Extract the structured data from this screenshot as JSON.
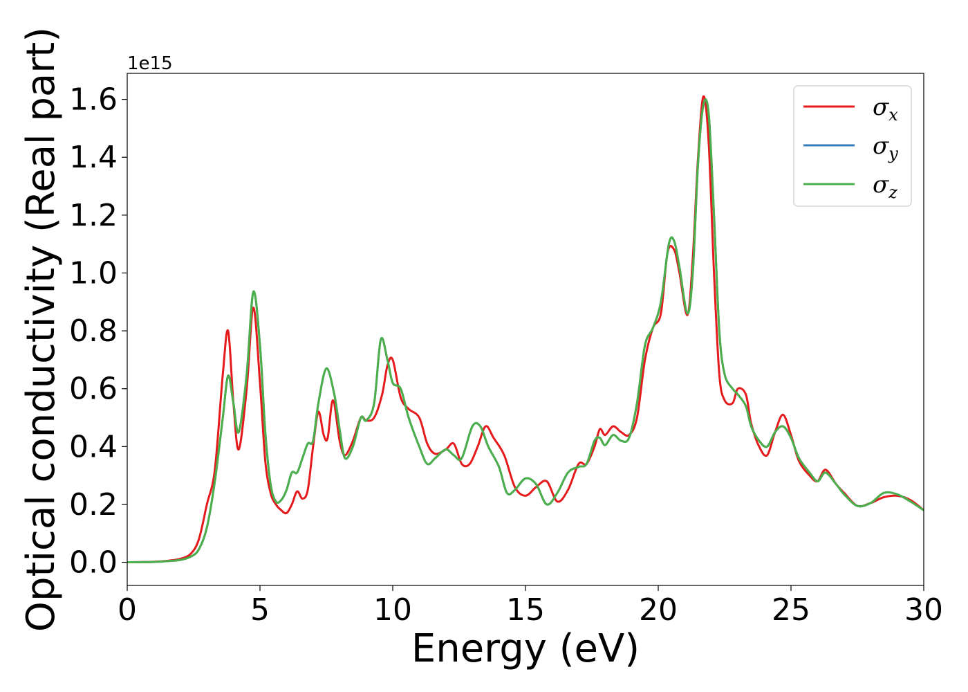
{
  "chart_data": {
    "type": "line",
    "xlabel": "Energy (eV)",
    "ylabel": "Optical conductivity (Real part)",
    "y_offset_label": "1e15",
    "xlim": [
      0,
      30
    ],
    "ylim": [
      -0.08,
      1.69
    ],
    "x_ticks": [
      0,
      5,
      10,
      15,
      20,
      25,
      30
    ],
    "y_ticks": [
      0.0,
      0.2,
      0.4,
      0.6,
      0.8,
      1.0,
      1.2,
      1.4,
      1.6
    ],
    "y_tick_labels": [
      "0.0",
      "0.2",
      "0.4",
      "0.6",
      "0.8",
      "1.0",
      "1.2",
      "1.4",
      "1.6"
    ],
    "grid": false,
    "legend_position": "top-right",
    "series": [
      {
        "name": "σ",
        "subscript": "x",
        "color": "#e41a1c",
        "x": [
          0,
          1,
          1.5,
          2,
          2.4,
          2.7,
          3.0,
          3.3,
          3.6,
          3.8,
          4.0,
          4.2,
          4.5,
          4.75,
          5.0,
          5.2,
          5.4,
          5.6,
          5.8,
          6.0,
          6.2,
          6.4,
          6.6,
          6.8,
          7.0,
          7.2,
          7.4,
          7.55,
          7.75,
          8.0,
          8.2,
          8.5,
          8.8,
          9.0,
          9.3,
          9.6,
          9.8,
          10.0,
          10.3,
          10.6,
          11.0,
          11.3,
          11.6,
          12.0,
          12.3,
          12.6,
          12.9,
          13.2,
          13.5,
          13.8,
          14.2,
          14.6,
          15.0,
          15.4,
          15.8,
          16.2,
          16.6,
          17.0,
          17.3,
          17.6,
          17.8,
          18.0,
          18.3,
          18.6,
          18.9,
          19.2,
          19.5,
          19.8,
          20.1,
          20.35,
          20.6,
          20.8,
          21.1,
          21.3,
          21.5,
          21.7,
          21.9,
          22.1,
          22.3,
          22.5,
          22.8,
          23.0,
          23.3,
          23.5,
          23.8,
          24.1,
          24.4,
          24.7,
          25.0,
          25.3,
          25.7,
          26.0,
          26.3,
          26.7,
          27.0,
          27.5,
          28.0,
          28.5,
          29.0,
          29.5,
          30.0
        ],
        "values": [
          0.0,
          0.002,
          0.005,
          0.012,
          0.03,
          0.08,
          0.2,
          0.32,
          0.65,
          0.8,
          0.55,
          0.39,
          0.6,
          0.88,
          0.62,
          0.35,
          0.24,
          0.2,
          0.18,
          0.17,
          0.2,
          0.245,
          0.22,
          0.25,
          0.4,
          0.52,
          0.44,
          0.43,
          0.56,
          0.42,
          0.37,
          0.42,
          0.5,
          0.49,
          0.5,
          0.58,
          0.68,
          0.7,
          0.57,
          0.53,
          0.5,
          0.41,
          0.375,
          0.39,
          0.41,
          0.34,
          0.34,
          0.4,
          0.47,
          0.43,
          0.37,
          0.26,
          0.23,
          0.26,
          0.28,
          0.21,
          0.25,
          0.34,
          0.34,
          0.4,
          0.46,
          0.44,
          0.47,
          0.45,
          0.44,
          0.5,
          0.7,
          0.81,
          0.86,
          1.07,
          1.08,
          1.0,
          0.855,
          1.05,
          1.4,
          1.61,
          1.45,
          1.0,
          0.65,
          0.56,
          0.55,
          0.6,
          0.58,
          0.48,
          0.4,
          0.37,
          0.45,
          0.51,
          0.44,
          0.35,
          0.3,
          0.28,
          0.32,
          0.27,
          0.24,
          0.195,
          0.205,
          0.225,
          0.23,
          0.215,
          0.18
        ]
      },
      {
        "name": "σ",
        "subscript": "y",
        "color": "#377eb8",
        "x": [
          0,
          1,
          1.5,
          2,
          2.4,
          2.7,
          3.0,
          3.3,
          3.6,
          3.8,
          4.0,
          4.2,
          4.5,
          4.75,
          5.0,
          5.2,
          5.4,
          5.6,
          5.8,
          6.0,
          6.2,
          6.4,
          6.6,
          6.8,
          7.0,
          7.2,
          7.5,
          7.8,
          8.0,
          8.2,
          8.5,
          8.8,
          9.0,
          9.3,
          9.55,
          9.8,
          10.0,
          10.3,
          10.6,
          11.0,
          11.3,
          11.6,
          12.0,
          12.3,
          12.6,
          13.0,
          13.3,
          13.6,
          14.0,
          14.3,
          14.6,
          15.0,
          15.4,
          15.8,
          16.2,
          16.6,
          17.0,
          17.3,
          17.6,
          17.8,
          18.0,
          18.3,
          18.6,
          18.9,
          19.2,
          19.5,
          19.8,
          20.1,
          20.4,
          20.6,
          20.8,
          21.1,
          21.3,
          21.5,
          21.7,
          21.9,
          22.1,
          22.3,
          22.5,
          22.8,
          23.0,
          23.3,
          23.5,
          23.8,
          24.1,
          24.4,
          24.7,
          25.0,
          25.3,
          25.7,
          26.0,
          26.3,
          26.7,
          27.0,
          27.5,
          28.0,
          28.5,
          29.0,
          29.5,
          30.0
        ],
        "values": [
          0.0,
          0.001,
          0.004,
          0.008,
          0.02,
          0.045,
          0.12,
          0.28,
          0.5,
          0.645,
          0.55,
          0.45,
          0.65,
          0.935,
          0.75,
          0.45,
          0.27,
          0.21,
          0.215,
          0.25,
          0.31,
          0.31,
          0.36,
          0.41,
          0.42,
          0.55,
          0.67,
          0.58,
          0.46,
          0.36,
          0.4,
          0.5,
          0.49,
          0.55,
          0.77,
          0.7,
          0.62,
          0.6,
          0.5,
          0.4,
          0.34,
          0.36,
          0.39,
          0.37,
          0.36,
          0.47,
          0.47,
          0.4,
          0.33,
          0.24,
          0.25,
          0.29,
          0.27,
          0.2,
          0.24,
          0.31,
          0.33,
          0.34,
          0.42,
          0.43,
          0.405,
          0.44,
          0.42,
          0.43,
          0.55,
          0.75,
          0.81,
          0.9,
          1.1,
          1.11,
          1.02,
          0.86,
          1.0,
          1.38,
          1.58,
          1.55,
          1.2,
          0.8,
          0.65,
          0.6,
          0.58,
          0.54,
          0.47,
          0.42,
          0.4,
          0.45,
          0.47,
          0.43,
          0.36,
          0.31,
          0.28,
          0.31,
          0.27,
          0.235,
          0.195,
          0.205,
          0.24,
          0.235,
          0.21,
          0.18
        ]
      },
      {
        "name": "σ",
        "subscript": "z",
        "color": "#4daf4a",
        "x": [
          0,
          1,
          1.5,
          2,
          2.4,
          2.7,
          3.0,
          3.3,
          3.6,
          3.8,
          4.0,
          4.2,
          4.5,
          4.75,
          5.0,
          5.2,
          5.4,
          5.6,
          5.8,
          6.0,
          6.2,
          6.4,
          6.6,
          6.8,
          7.0,
          7.2,
          7.5,
          7.8,
          8.0,
          8.2,
          8.5,
          8.8,
          9.0,
          9.3,
          9.55,
          9.8,
          10.0,
          10.3,
          10.6,
          11.0,
          11.3,
          11.6,
          12.0,
          12.3,
          12.6,
          13.0,
          13.3,
          13.6,
          14.0,
          14.3,
          14.6,
          15.0,
          15.4,
          15.8,
          16.2,
          16.6,
          17.0,
          17.3,
          17.6,
          17.8,
          18.0,
          18.3,
          18.6,
          18.9,
          19.2,
          19.5,
          19.8,
          20.1,
          20.4,
          20.6,
          20.8,
          21.1,
          21.3,
          21.5,
          21.7,
          21.9,
          22.1,
          22.3,
          22.5,
          22.8,
          23.0,
          23.3,
          23.5,
          23.8,
          24.1,
          24.4,
          24.7,
          25.0,
          25.3,
          25.7,
          26.0,
          26.3,
          26.7,
          27.0,
          27.5,
          28.0,
          28.5,
          29.0,
          29.5,
          30.0
        ],
        "values": [
          0.0,
          0.001,
          0.004,
          0.008,
          0.02,
          0.045,
          0.12,
          0.28,
          0.5,
          0.645,
          0.55,
          0.45,
          0.65,
          0.935,
          0.75,
          0.45,
          0.27,
          0.21,
          0.215,
          0.25,
          0.31,
          0.31,
          0.36,
          0.41,
          0.42,
          0.55,
          0.67,
          0.58,
          0.46,
          0.36,
          0.4,
          0.5,
          0.49,
          0.55,
          0.77,
          0.7,
          0.62,
          0.6,
          0.5,
          0.4,
          0.34,
          0.36,
          0.39,
          0.37,
          0.36,
          0.47,
          0.47,
          0.4,
          0.33,
          0.24,
          0.25,
          0.29,
          0.27,
          0.2,
          0.24,
          0.31,
          0.33,
          0.34,
          0.42,
          0.43,
          0.405,
          0.44,
          0.42,
          0.43,
          0.55,
          0.75,
          0.81,
          0.9,
          1.1,
          1.11,
          1.02,
          0.86,
          1.0,
          1.38,
          1.58,
          1.55,
          1.2,
          0.8,
          0.65,
          0.6,
          0.58,
          0.54,
          0.47,
          0.42,
          0.4,
          0.45,
          0.47,
          0.43,
          0.36,
          0.31,
          0.28,
          0.31,
          0.27,
          0.235,
          0.195,
          0.205,
          0.24,
          0.235,
          0.21,
          0.18
        ]
      }
    ]
  }
}
